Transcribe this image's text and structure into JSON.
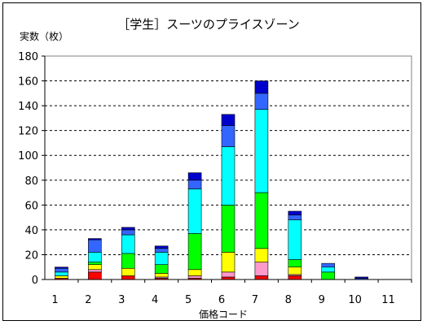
{
  "chart_data": {
    "type": "bar",
    "stacked": true,
    "title": "［学生］スーツのプライスゾーン",
    "ylabel": "実数（枚）",
    "xlabel": "価格コード",
    "categories": [
      "1",
      "2",
      "3",
      "4",
      "5",
      "6",
      "7",
      "8",
      "9",
      "10",
      "11"
    ],
    "ylim": [
      0,
      180
    ],
    "yticks": [
      0,
      20,
      40,
      60,
      80,
      100,
      120,
      140,
      160,
      180
    ],
    "grid": "horizontal dashed",
    "legend": "none",
    "series": [
      {
        "color": "#FF0000",
        "values": [
          1,
          6,
          3,
          1,
          1,
          2,
          3,
          3,
          0,
          0,
          0
        ]
      },
      {
        "color": "#FF99CC",
        "values": [
          0,
          2,
          0,
          1,
          2,
          4,
          11,
          1,
          0,
          0,
          0
        ]
      },
      {
        "color": "#FFFF00",
        "values": [
          2,
          4,
          6,
          3,
          5,
          16,
          11,
          6,
          0,
          0,
          0
        ]
      },
      {
        "color": "#00FF00",
        "values": [
          0,
          2,
          12,
          7,
          29,
          38,
          45,
          6,
          6,
          0,
          0
        ]
      },
      {
        "color": "#00FFFF",
        "values": [
          3,
          8,
          15,
          10,
          36,
          47,
          67,
          32,
          4,
          0,
          0
        ]
      },
      {
        "color": "#3366FF",
        "values": [
          3,
          10,
          4,
          3,
          7,
          17,
          13,
          4,
          3,
          1,
          0
        ]
      },
      {
        "color": "#0000CC",
        "values": [
          1,
          1,
          2,
          2,
          6,
          9,
          10,
          3,
          0,
          1,
          0
        ]
      }
    ]
  }
}
